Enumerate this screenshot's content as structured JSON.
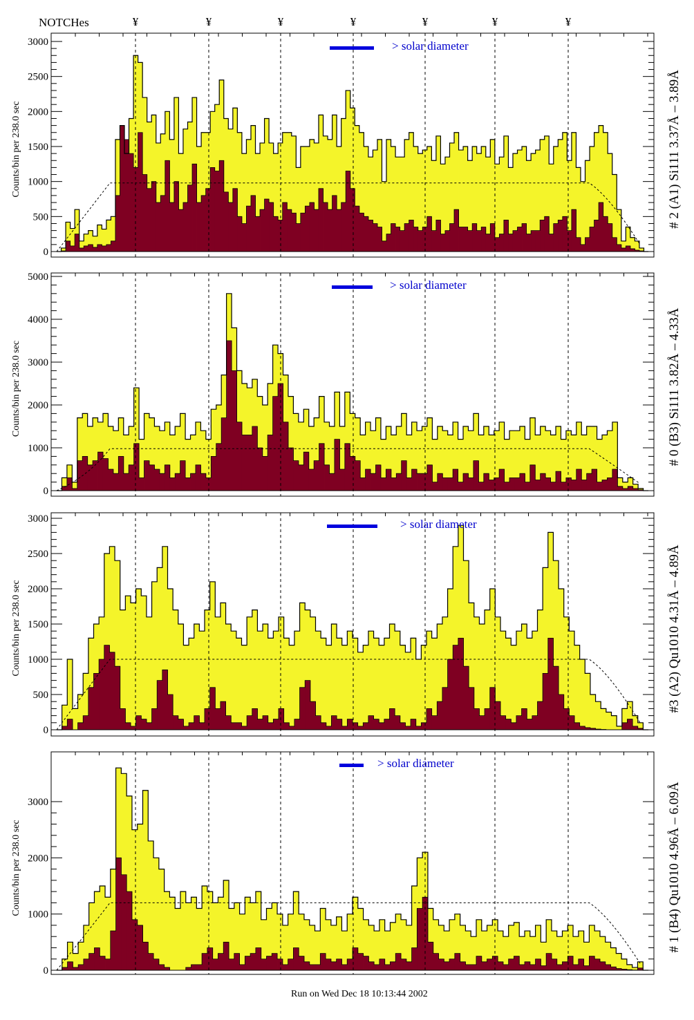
{
  "header": {
    "notches_label": "NOTCHes",
    "notch_marker": "¥",
    "notch_count": 7
  },
  "footer": {
    "run_label": "Run on Wed Dec 18 10:13:44 2002"
  },
  "colors": {
    "total": "#f4f42a",
    "subset": "#7f0022",
    "legend": "#0000dd",
    "line": "#000000"
  },
  "chart_data": [
    {
      "type": "bar",
      "title": "# 2 (A1) Si111  3.37Å – 3.89Å",
      "ylabel": "Counts/bin per    238.0 sec",
      "legend": "> solar diameter",
      "ylim": [
        0,
        3000
      ],
      "yticks": [
        0,
        500,
        1000,
        1500,
        2000,
        2500,
        3000
      ],
      "tick_labels": [
        "0",
        "500",
        "1000",
        "1500",
        "2000",
        "2500",
        "3000"
      ],
      "reference_level": 980,
      "series": [
        {
          "name": "total",
          "values": [
            0,
            50,
            420,
            330,
            600,
            150,
            250,
            300,
            220,
            380,
            320,
            450,
            500,
            1600,
            1800,
            1400,
            1900,
            2800,
            2700,
            2200,
            1850,
            1950,
            1550,
            1680,
            2000,
            1600,
            2200,
            1400,
            1750,
            1850,
            2200,
            1500,
            1700,
            1700,
            2000,
            2100,
            2450,
            1900,
            1750,
            2050,
            1700,
            1400,
            1600,
            1800,
            1400,
            1550,
            1900,
            1550,
            1400,
            1550,
            1700,
            1700,
            1650,
            1200,
            1500,
            1500,
            1600,
            1550,
            1950,
            1650,
            1600,
            1950,
            1500,
            1900,
            2300,
            2050,
            1800,
            1700,
            1500,
            1350,
            1450,
            1600,
            1000,
            1600,
            1500,
            1350,
            1350,
            1600,
            1700,
            1500,
            1400,
            1450,
            1500,
            1300,
            1650,
            1250,
            1350,
            1550,
            1700,
            1450,
            1500,
            1300,
            1500,
            1400,
            1500,
            1350,
            1600,
            1250,
            1350,
            1650,
            1200,
            1400,
            1450,
            1500,
            1300,
            1400,
            1450,
            1600,
            1650,
            1250,
            1500,
            1600,
            1700,
            1300,
            1700,
            1200,
            1000,
            1300,
            1500,
            1700,
            1800,
            1700,
            1400,
            1100,
            600,
            150,
            350,
            200,
            150,
            50,
            0
          ]
        },
        {
          "name": "subset",
          "values": [
            0,
            10,
            150,
            80,
            250,
            50,
            80,
            100,
            60,
            100,
            80,
            100,
            150,
            800,
            1800,
            1600,
            1400,
            1200,
            1700,
            1100,
            900,
            1000,
            700,
            800,
            1300,
            700,
            1000,
            600,
            700,
            950,
            1250,
            700,
            800,
            900,
            1200,
            1150,
            1300,
            850,
            700,
            900,
            500,
            400,
            650,
            800,
            500,
            600,
            750,
            700,
            500,
            450,
            700,
            600,
            550,
            400,
            550,
            650,
            700,
            600,
            900,
            700,
            600,
            800,
            600,
            700,
            1150,
            900,
            650,
            550,
            500,
            450,
            400,
            350,
            150,
            250,
            400,
            350,
            300,
            400,
            450,
            350,
            300,
            350,
            500,
            300,
            450,
            250,
            300,
            400,
            600,
            350,
            350,
            300,
            400,
            300,
            350,
            250,
            400,
            200,
            250,
            450,
            250,
            300,
            350,
            400,
            250,
            300,
            300,
            450,
            500,
            250,
            400,
            450,
            500,
            300,
            600,
            200,
            100,
            200,
            350,
            450,
            700,
            500,
            400,
            200,
            100,
            50,
            80,
            40,
            20,
            10,
            0
          ]
        }
      ]
    },
    {
      "type": "bar",
      "title": "# 0 (B3) Si111  3.82Å – 4.33Å",
      "ylabel": "Counts/bin per    238.0 sec",
      "legend": "> solar diameter",
      "ylim": [
        0,
        5000
      ],
      "yticks": [
        0,
        1000,
        2000,
        3000,
        4000,
        5000
      ],
      "tick_labels": [
        "0",
        "1000",
        "2000",
        "3000",
        "4000",
        "5000"
      ],
      "reference_level": 980,
      "series": [
        {
          "name": "total",
          "values": [
            0,
            300,
            600,
            200,
            1700,
            1800,
            1500,
            1700,
            1600,
            1800,
            1500,
            1400,
            1700,
            1300,
            1500,
            2400,
            1200,
            1800,
            1700,
            1500,
            1400,
            1600,
            1300,
            1500,
            1800,
            1200,
            1300,
            1600,
            1400,
            1200,
            1900,
            2000,
            2700,
            4600,
            3800,
            2800,
            2500,
            2400,
            2600,
            2200,
            2000,
            2500,
            3400,
            3200,
            2700,
            2200,
            1800,
            1600,
            1900,
            1500,
            1700,
            2200,
            1600,
            1500,
            2300,
            1500,
            2300,
            1800,
            1700,
            1300,
            1600,
            1400,
            1700,
            1200,
            1500,
            1300,
            1500,
            1800,
            1300,
            1600,
            1400,
            1500,
            1700,
            1200,
            1500,
            1400,
            1300,
            1600,
            1200,
            1500,
            1400,
            1800,
            1300,
            1500,
            1300,
            1400,
            1600,
            1200,
            1400,
            1400,
            1500,
            1200,
            1700,
            1300,
            1500,
            1400,
            1300,
            1500,
            1200,
            1400,
            1300,
            1600,
            1300,
            1500,
            1500,
            1200,
            1300,
            1400,
            1600,
            300,
            200,
            300,
            150,
            50,
            0
          ]
        },
        {
          "name": "subset",
          "values": [
            0,
            100,
            300,
            50,
            700,
            800,
            600,
            700,
            900,
            750,
            500,
            400,
            800,
            400,
            600,
            1100,
            300,
            700,
            600,
            500,
            400,
            600,
            300,
            400,
            700,
            300,
            400,
            600,
            400,
            300,
            800,
            1100,
            1700,
            3500,
            2800,
            1600,
            1300,
            1300,
            1500,
            1000,
            800,
            1300,
            2200,
            2500,
            1600,
            1000,
            700,
            600,
            900,
            500,
            700,
            1100,
            600,
            400,
            1200,
            500,
            1100,
            800,
            700,
            300,
            500,
            400,
            600,
            300,
            500,
            300,
            400,
            700,
            300,
            500,
            400,
            400,
            600,
            200,
            400,
            300,
            300,
            500,
            200,
            400,
            300,
            700,
            200,
            400,
            250,
            300,
            500,
            200,
            300,
            300,
            400,
            200,
            600,
            250,
            400,
            300,
            200,
            450,
            200,
            300,
            250,
            500,
            250,
            400,
            500,
            200,
            250,
            300,
            500,
            100,
            50,
            100,
            50,
            20,
            0
          ]
        }
      ]
    },
    {
      "type": "bar",
      "title": "#3 (A2) Qu1010  4.31Å – 4.89Å",
      "ylabel": "Counts/bin per    238.0 sec",
      "legend": "> solar diameter",
      "ylim": [
        0,
        3000
      ],
      "yticks": [
        0,
        500,
        1000,
        1500,
        2000,
        2500,
        3000
      ],
      "tick_labels": [
        "0",
        "500",
        "1000",
        "1500",
        "2000",
        "2500",
        "3000"
      ],
      "reference_level": 1000,
      "series": [
        {
          "name": "total",
          "values": [
            0,
            350,
            1000,
            300,
            500,
            800,
            1300,
            1500,
            1600,
            2500,
            2600,
            2400,
            1700,
            1900,
            1800,
            2000,
            1900,
            1600,
            2100,
            2300,
            2600,
            2000,
            1700,
            1500,
            1200,
            1300,
            1500,
            1400,
            1700,
            2100,
            1600,
            1800,
            1500,
            1400,
            1300,
            1200,
            1600,
            1700,
            1400,
            1500,
            1300,
            1400,
            1600,
            1300,
            1200,
            1400,
            1800,
            1700,
            1600,
            1400,
            1300,
            1200,
            1500,
            1300,
            1200,
            1400,
            1300,
            1100,
            1200,
            1400,
            1300,
            1200,
            1300,
            1500,
            1400,
            1200,
            1100,
            1300,
            1000,
            1200,
            1400,
            1300,
            1500,
            1600,
            2000,
            2600,
            2900,
            2400,
            1800,
            1600,
            1500,
            1700,
            2000,
            1600,
            1400,
            1300,
            1200,
            1400,
            1500,
            1300,
            1400,
            1700,
            2300,
            2800,
            2400,
            2000,
            1600,
            1400,
            1200,
            1000,
            800,
            500,
            400,
            300,
            250,
            200,
            50,
            300,
            400,
            200,
            100,
            0
          ]
        },
        {
          "name": "subset",
          "values": [
            0,
            50,
            150,
            0,
            100,
            200,
            600,
            800,
            1000,
            1200,
            1100,
            900,
            300,
            100,
            50,
            200,
            150,
            100,
            300,
            700,
            850,
            500,
            200,
            150,
            50,
            100,
            200,
            100,
            300,
            600,
            300,
            400,
            200,
            100,
            100,
            50,
            200,
            300,
            150,
            200,
            100,
            150,
            300,
            100,
            50,
            150,
            600,
            700,
            400,
            200,
            100,
            50,
            200,
            150,
            50,
            150,
            100,
            50,
            100,
            200,
            150,
            100,
            150,
            300,
            200,
            100,
            50,
            150,
            50,
            100,
            300,
            200,
            400,
            600,
            1000,
            1200,
            1300,
            900,
            600,
            300,
            200,
            300,
            600,
            400,
            200,
            150,
            100,
            200,
            300,
            150,
            200,
            400,
            800,
            1300,
            900,
            500,
            300,
            200,
            100,
            50,
            30,
            20,
            10,
            5,
            0,
            0,
            0,
            100,
            150,
            50,
            20,
            0
          ]
        }
      ]
    },
    {
      "type": "bar",
      "title": "# 1 (B4) Qu1010 4.96Å – 6.09Å",
      "ylabel": "Counts/bin per    238.0 sec",
      "legend": "> solar diameter",
      "ylim": [
        0,
        3800
      ],
      "yticks": [
        0,
        1000,
        2000,
        3000
      ],
      "tick_labels": [
        "0",
        "1000",
        "2000",
        "3000"
      ],
      "reference_level": 1200,
      "series": [
        {
          "name": "total",
          "values": [
            0,
            200,
            500,
            300,
            500,
            800,
            1200,
            1400,
            1500,
            1300,
            1800,
            3600,
            3500,
            3100,
            2500,
            2600,
            3200,
            2300,
            2000,
            1800,
            1400,
            1300,
            1100,
            1400,
            1200,
            1300,
            1100,
            1500,
            1400,
            1200,
            1300,
            1600,
            1100,
            1200,
            1000,
            1300,
            1200,
            1400,
            900,
            1100,
            1200,
            1000,
            800,
            1000,
            1400,
            1000,
            900,
            800,
            700,
            1100,
            900,
            800,
            950,
            700,
            1000,
            1300,
            1100,
            900,
            800,
            700,
            900,
            700,
            850,
            1000,
            900,
            800,
            1500,
            2000,
            2100,
            1100,
            900,
            800,
            700,
            900,
            1000,
            800,
            700,
            600,
            900,
            700,
            800,
            900,
            700,
            600,
            800,
            850,
            600,
            700,
            600,
            800,
            500,
            900,
            700,
            600,
            700,
            800,
            600,
            700,
            500,
            800,
            700,
            600,
            500,
            400,
            300,
            200,
            100,
            50,
            150,
            0
          ]
        },
        {
          "name": "subset",
          "values": [
            0,
            50,
            150,
            50,
            100,
            200,
            300,
            400,
            250,
            200,
            700,
            2000,
            1700,
            1400,
            900,
            800,
            500,
            300,
            200,
            100,
            50,
            0,
            0,
            0,
            50,
            100,
            100,
            300,
            400,
            200,
            300,
            500,
            200,
            300,
            100,
            250,
            300,
            400,
            200,
            250,
            300,
            200,
            100,
            200,
            400,
            250,
            150,
            100,
            100,
            300,
            200,
            150,
            200,
            100,
            200,
            400,
            300,
            250,
            150,
            100,
            200,
            100,
            150,
            300,
            200,
            150,
            400,
            1100,
            1300,
            500,
            300,
            200,
            150,
            200,
            300,
            150,
            100,
            100,
            250,
            150,
            200,
            250,
            150,
            100,
            200,
            250,
            100,
            150,
            100,
            200,
            80,
            300,
            200,
            100,
            150,
            250,
            100,
            200,
            80,
            250,
            200,
            150,
            100,
            60,
            30,
            20,
            10,
            5,
            40,
            0
          ]
        }
      ]
    }
  ]
}
